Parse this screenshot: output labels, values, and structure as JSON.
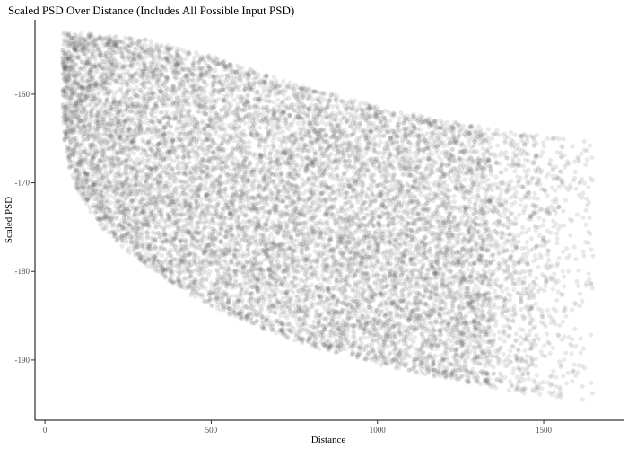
{
  "chart_data": {
    "type": "scatter",
    "title": "Scaled PSD Over Distance (Includes All Possible Input PSD)",
    "xlabel": "Distance",
    "ylabel": "Scaled PSD",
    "xlim": [
      -30,
      1740
    ],
    "ylim": [
      -196.8,
      -151.6
    ],
    "xticks": [
      0,
      500,
      1000,
      1500
    ],
    "yticks": [
      -160,
      -170,
      -180,
      -190
    ],
    "grid": false,
    "legend": "none",
    "point_color": "#4d4d4d",
    "point_alpha": 0.12,
    "columns": [
      {
        "x": 55,
        "y_max": -152.9,
        "y_min": -164.5
      },
      {
        "x": 75,
        "y_max": -153.0,
        "y_min": -168.5
      },
      {
        "x": 100,
        "y_max": -153.1,
        "y_min": -171.0
      },
      {
        "x": 150,
        "y_max": -153.2,
        "y_min": -174.0
      },
      {
        "x": 200,
        "y_max": -153.4,
        "y_min": -176.2
      },
      {
        "x": 250,
        "y_max": -153.6,
        "y_min": -177.8
      },
      {
        "x": 300,
        "y_max": -153.8,
        "y_min": -179.2
      },
      {
        "x": 350,
        "y_max": -154.2,
        "y_min": -180.5
      },
      {
        "x": 400,
        "y_max": -154.6,
        "y_min": -181.8
      },
      {
        "x": 450,
        "y_max": -155.1,
        "y_min": -182.9
      },
      {
        "x": 500,
        "y_max": -155.7,
        "y_min": -183.9
      },
      {
        "x": 550,
        "y_max": -156.3,
        "y_min": -184.8
      },
      {
        "x": 600,
        "y_max": -157.0,
        "y_min": -185.6
      },
      {
        "x": 650,
        "y_max": -157.6,
        "y_min": -186.4
      },
      {
        "x": 700,
        "y_max": -158.2,
        "y_min": -187.1
      },
      {
        "x": 750,
        "y_max": -158.8,
        "y_min": -187.8
      },
      {
        "x": 800,
        "y_max": -159.3,
        "y_min": -188.4
      },
      {
        "x": 850,
        "y_max": -159.9,
        "y_min": -189.0
      },
      {
        "x": 900,
        "y_max": -160.4,
        "y_min": -189.5
      },
      {
        "x": 950,
        "y_max": -160.9,
        "y_min": -190.0
      },
      {
        "x": 1000,
        "y_max": -161.4,
        "y_min": -190.5
      },
      {
        "x": 1050,
        "y_max": -161.8,
        "y_min": -190.9
      },
      {
        "x": 1100,
        "y_max": -162.2,
        "y_min": -191.3
      },
      {
        "x": 1150,
        "y_max": -162.6,
        "y_min": -191.7
      },
      {
        "x": 1200,
        "y_max": -163.0,
        "y_min": -192.0
      },
      {
        "x": 1250,
        "y_max": -163.3,
        "y_min": -192.4
      },
      {
        "x": 1300,
        "y_max": -163.6,
        "y_min": -192.7
      },
      {
        "x": 1350,
        "y_max": -163.9,
        "y_min": -193.1
      },
      {
        "x": 1400,
        "y_max": -164.2,
        "y_min": -193.5
      },
      {
        "x": 1450,
        "y_max": -164.4,
        "y_min": -193.8
      },
      {
        "x": 1500,
        "y_max": -164.6,
        "y_min": -194.0
      },
      {
        "x": 1550,
        "y_max": -164.8,
        "y_min": -194.2
      },
      {
        "x": 1600,
        "y_max": -165.0,
        "y_min": -194.4
      },
      {
        "x": 1650,
        "y_max": -165.2,
        "y_min": -194.6
      }
    ]
  }
}
